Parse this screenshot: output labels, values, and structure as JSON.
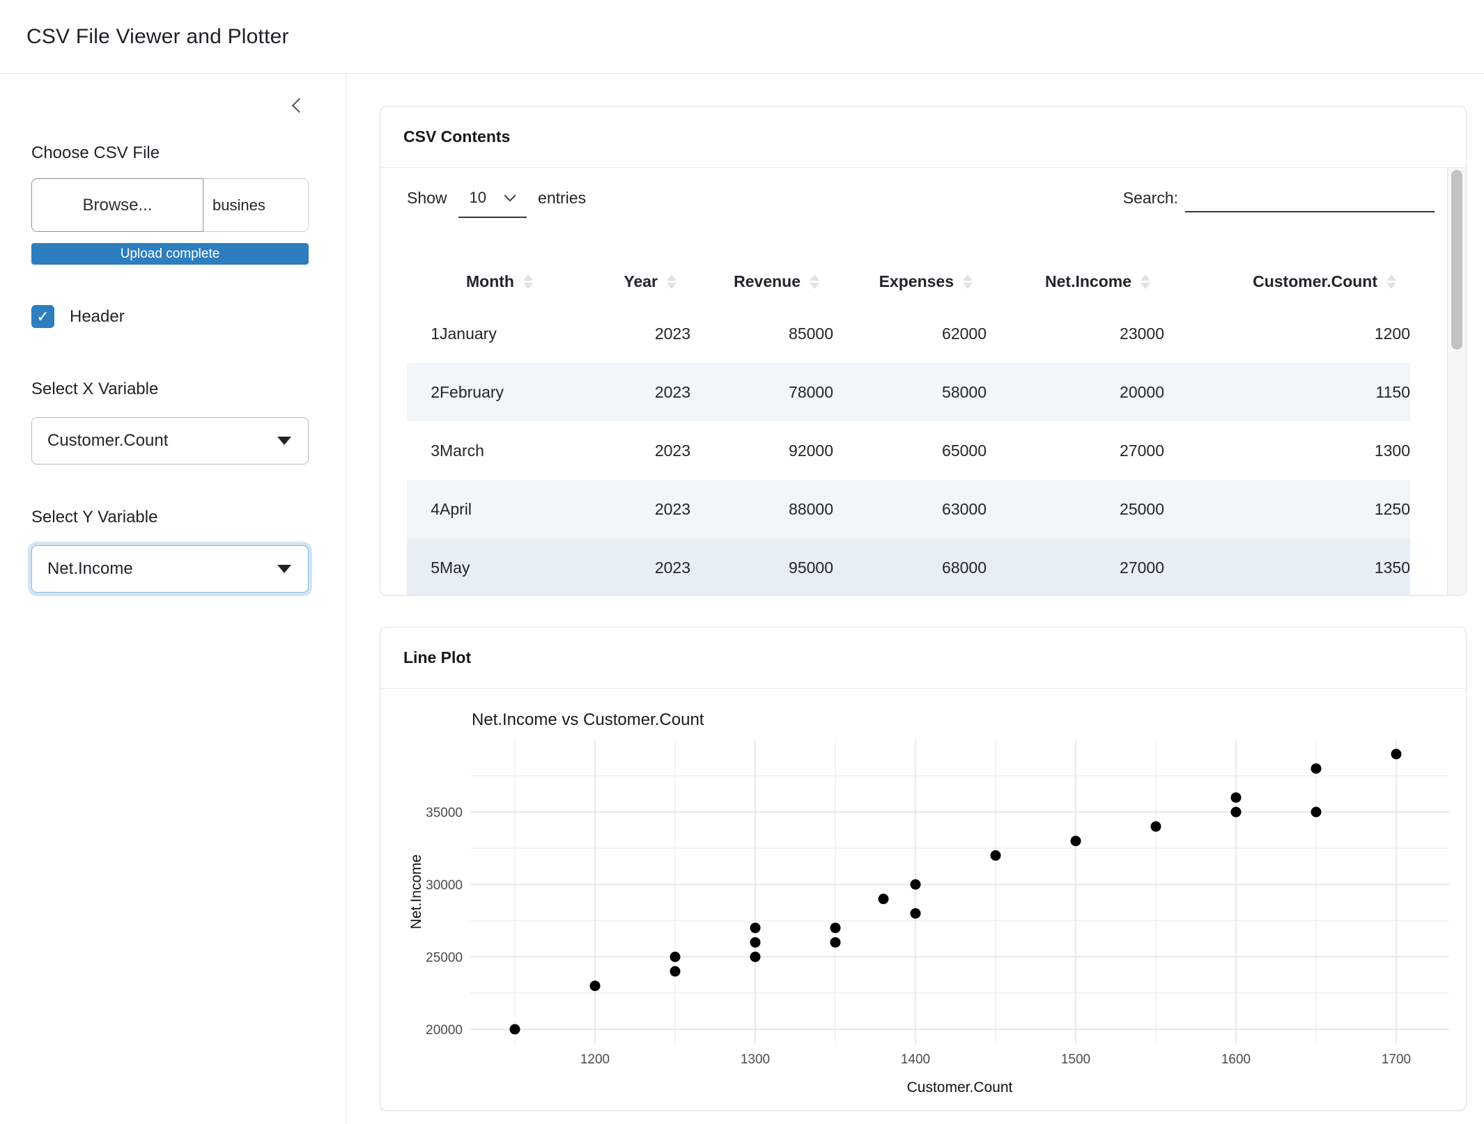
{
  "app": {
    "title": "CSV File Viewer and Plotter"
  },
  "sidebar": {
    "file_input": {
      "label": "Choose CSV File",
      "browse_label": "Browse...",
      "filename": "busines",
      "progress_label": "Upload complete"
    },
    "header_checkbox": {
      "label": "Header",
      "checked": true
    },
    "x_select": {
      "label": "Select X Variable",
      "value": "Customer.Count"
    },
    "y_select": {
      "label": "Select Y Variable",
      "value": "Net.Income"
    }
  },
  "csv_card": {
    "title": "CSV Contents",
    "length_control": {
      "prefix": "Show",
      "value": "10",
      "suffix": "entries"
    },
    "search": {
      "label": "Search:",
      "value": "",
      "placeholder": ""
    },
    "table": {
      "columns": [
        "",
        "Month",
        "Year",
        "Revenue",
        "Expenses",
        "Net.Income",
        "Customer.Count"
      ],
      "rows": [
        [
          "1",
          "January",
          "2023",
          "85000",
          "62000",
          "23000",
          "1200"
        ],
        [
          "2",
          "February",
          "2023",
          "78000",
          "58000",
          "20000",
          "1150"
        ],
        [
          "3",
          "March",
          "2023",
          "92000",
          "65000",
          "27000",
          "1300"
        ],
        [
          "4",
          "April",
          "2023",
          "88000",
          "63000",
          "25000",
          "1250"
        ],
        [
          "5",
          "May",
          "2023",
          "95000",
          "68000",
          "27000",
          "1350"
        ]
      ],
      "striped_rows": [
        2,
        4
      ],
      "hovered_row": 5
    }
  },
  "plot_card": {
    "title": "Line Plot"
  },
  "chart_data": {
    "type": "scatter",
    "title": "Net.Income vs Customer.Count",
    "xlabel": "Customer.Count",
    "ylabel": "Net.Income",
    "x_ticks": [
      1200,
      1300,
      1400,
      1500,
      1600,
      1700
    ],
    "y_ticks": [
      20000,
      25000,
      30000,
      35000
    ],
    "x_minor": [
      1150,
      1250,
      1350,
      1450,
      1550,
      1650
    ],
    "y_minor": [
      22500,
      27500,
      32500,
      37500
    ],
    "xlim": [
      1122,
      1738
    ],
    "ylim": [
      19000,
      40000
    ],
    "grid": true,
    "legend": false,
    "point_color": "#000000",
    "points": [
      [
        1150,
        20000
      ],
      [
        1200,
        23000
      ],
      [
        1250,
        24000
      ],
      [
        1250,
        25000
      ],
      [
        1300,
        25000
      ],
      [
        1300,
        26000
      ],
      [
        1300,
        27000
      ],
      [
        1350,
        26000
      ],
      [
        1350,
        27000
      ],
      [
        1380,
        29000
      ],
      [
        1400,
        28000
      ],
      [
        1400,
        30000
      ],
      [
        1450,
        32000
      ],
      [
        1500,
        33000
      ],
      [
        1550,
        34000
      ],
      [
        1600,
        35000
      ],
      [
        1600,
        36000
      ],
      [
        1650,
        35000
      ],
      [
        1650,
        38000
      ],
      [
        1700,
        39000
      ]
    ]
  },
  "colors": {
    "accent": "#2e7ebf",
    "stripe": "#f1f6fa",
    "hovered_row": "#e7eef6",
    "grid_major": "#e3e3e3",
    "grid_minor": "#efefef",
    "axis_text": "#4a4a4a",
    "sort_icon": "#dfe2e5",
    "scroll_thumb": "#c2c2c2"
  }
}
